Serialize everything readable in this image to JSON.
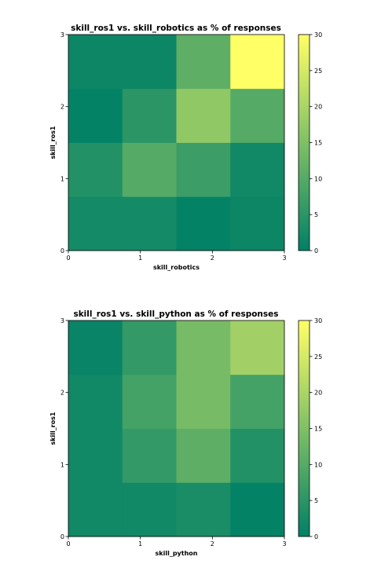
{
  "chart_data": [
    {
      "type": "heatmap",
      "title": "skill_ros1 vs. skill_robotics as % of responses",
      "xlabel": "skill_robotics",
      "ylabel": "skill_ros1",
      "x_ticks": [
        "0",
        "1",
        "2",
        "3"
      ],
      "y_ticks": [
        "0",
        "1",
        "2",
        "3"
      ],
      "xlim": [
        0,
        3
      ],
      "ylim": [
        0,
        3
      ],
      "rows_bottom_to_top": [
        [
          2.5,
          2.5,
          0.5,
          1.5
        ],
        [
          4,
          10,
          7,
          2
        ],
        [
          0.5,
          5,
          17,
          10
        ],
        [
          1.5,
          1.5,
          11,
          30
        ]
      ],
      "colorbar": {
        "min": 0,
        "max": 30,
        "ticks": [
          "0",
          "5",
          "10",
          "15",
          "20",
          "25",
          "30"
        ],
        "colormap": "summer"
      },
      "grid": false
    },
    {
      "type": "heatmap",
      "title": "skill_ros1 vs. skill_python as % of responses",
      "xlabel": "skill_python",
      "ylabel": "skill_ros1",
      "x_ticks": [
        "0",
        "1",
        "2",
        "3"
      ],
      "y_ticks": [
        "0",
        "1",
        "2",
        "3"
      ],
      "xlim": [
        0,
        3
      ],
      "ylim": [
        0,
        3
      ],
      "rows_bottom_to_top": [
        [
          2,
          2,
          3,
          0.5
        ],
        [
          2,
          6,
          11,
          4
        ],
        [
          2,
          8,
          14,
          8
        ],
        [
          1,
          6,
          14,
          19
        ]
      ],
      "colorbar": {
        "min": 0,
        "max": 30,
        "ticks": [
          "0",
          "5",
          "10",
          "15",
          "20",
          "25",
          "30"
        ],
        "colormap": "summer"
      },
      "grid": false
    }
  ]
}
